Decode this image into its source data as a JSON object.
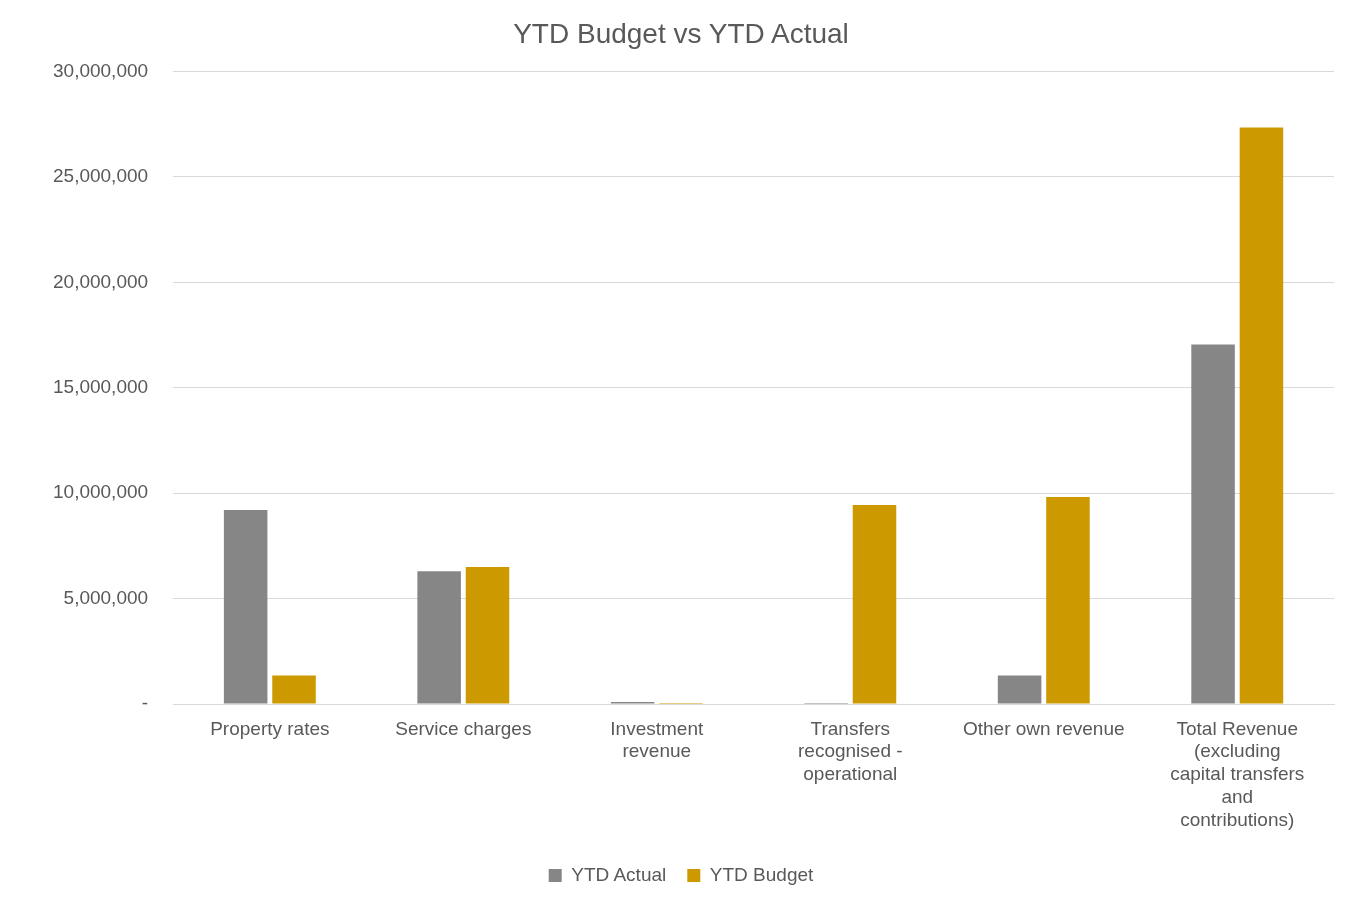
{
  "chart_data": {
    "type": "bar",
    "title": "YTD Budget vs YTD Actual",
    "categories": [
      "Property rates",
      "Service charges",
      "Investment revenue",
      "Transfers recognised - operational",
      "Other own revenue",
      "Total Revenue (excluding capital transfers and contributions)"
    ],
    "series": [
      {
        "name": "YTD Actual",
        "color": "#868686",
        "values": [
          9200000,
          6300000,
          100000,
          50000,
          1350000,
          17050000
        ]
      },
      {
        "name": "YTD Budget",
        "color": "#cc9a00",
        "values": [
          1350000,
          6500000,
          50000,
          9440000,
          9820000,
          27350000
        ]
      }
    ],
    "ylim": [
      0,
      30000000
    ],
    "yticks": [
      {
        "value": 0,
        "label": "-"
      },
      {
        "value": 5000000,
        "label": "5,000,000"
      },
      {
        "value": 10000000,
        "label": "10,000,000"
      },
      {
        "value": 15000000,
        "label": "15,000,000"
      },
      {
        "value": 20000000,
        "label": "20,000,000"
      },
      {
        "value": 25000000,
        "label": "25,000,000"
      },
      {
        "value": 30000000,
        "label": "30,000,000"
      }
    ],
    "grid": "y",
    "legend": "bottom"
  }
}
